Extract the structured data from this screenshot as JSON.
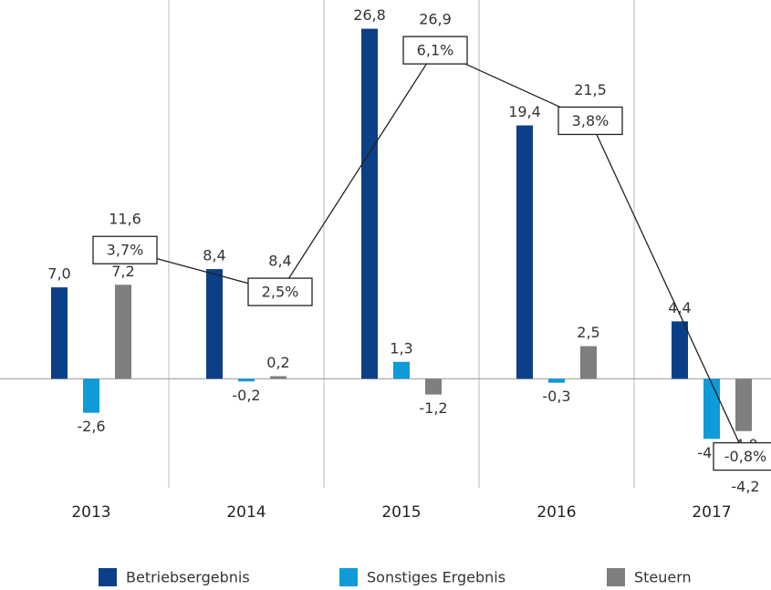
{
  "chart_data": {
    "type": "bar",
    "categories": [
      "2013",
      "2014",
      "2015",
      "2016",
      "2017"
    ],
    "series": [
      {
        "name": "Betriebsergebnis",
        "color": "#0b3f88",
        "values": [
          7.0,
          8.4,
          26.8,
          19.4,
          4.4
        ],
        "value_labels": [
          "7,0",
          "8,4",
          "26,8",
          "19,4",
          "4,4"
        ]
      },
      {
        "name": "Sonstiges Ergebnis",
        "color": "#0e9bd8",
        "values": [
          -2.6,
          -0.2,
          1.3,
          -0.3,
          -4.6
        ],
        "value_labels": [
          "-2,6",
          "-0,2",
          "1,3",
          "-0,3",
          "-4,6"
        ]
      },
      {
        "name": "Steuern",
        "color": "#7f7f7f",
        "values": [
          7.2,
          0.2,
          -1.2,
          2.5,
          -4.0
        ],
        "value_labels": [
          "7,2",
          "0,2",
          "-1,2",
          "2,5",
          "-4,0"
        ]
      }
    ],
    "totals": {
      "values": [
        11.6,
        8.4,
        26.9,
        21.5,
        -4.2
      ],
      "value_labels": [
        "11,6",
        "8,4",
        "26,9",
        "21,5",
        "-4,2"
      ]
    },
    "margins": {
      "values": [
        3.7,
        2.5,
        6.1,
        3.8,
        -0.8
      ],
      "value_labels": [
        "3,7%",
        "2,5%",
        "6,1%",
        "3,8%",
        "-0,8%"
      ]
    },
    "ylim": [
      -8,
      29
    ],
    "legend": "bottom"
  }
}
